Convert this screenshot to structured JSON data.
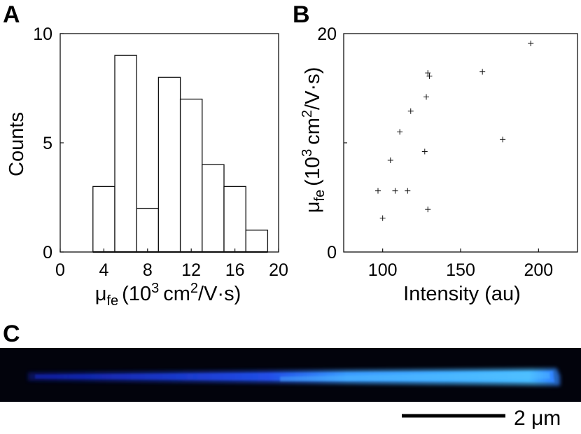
{
  "panels": {
    "a": {
      "letter": "A"
    },
    "b": {
      "letter": "B"
    },
    "c": {
      "letter": "C"
    }
  },
  "chart_data": [
    {
      "panel": "A",
      "type": "bar",
      "subtype": "histogram",
      "bin_edges": [
        3,
        5,
        7,
        9,
        11,
        13,
        15,
        17,
        19
      ],
      "values": [
        3,
        9,
        2,
        8,
        7,
        4,
        3,
        1
      ],
      "xlim": [
        0,
        20
      ],
      "ylim": [
        0,
        10
      ],
      "x_ticks": [
        "0",
        "4",
        "8",
        "12",
        "16",
        "20"
      ],
      "y_ticks": [
        "0",
        "5",
        "10"
      ],
      "ylabel": "Counts",
      "xlabel": {
        "symbol": "μ",
        "subscript": "fe",
        "prefix": "(10",
        "exp": "3",
        "mid": "cm",
        "exp2": "2",
        "suffix": "/V·s)"
      }
    },
    {
      "panel": "B",
      "type": "scatter",
      "marker": "+",
      "x": [
        97,
        100,
        105,
        108,
        111,
        116,
        118,
        127,
        128,
        129,
        129,
        130,
        164,
        177,
        195
      ],
      "y": [
        5.6,
        3.1,
        8.4,
        5.6,
        11.0,
        5.6,
        12.9,
        9.2,
        14.2,
        3.9,
        16.4,
        16.1,
        16.5,
        10.3,
        19.1
      ],
      "xlim": [
        75,
        225
      ],
      "ylim": [
        0,
        20
      ],
      "x_ticks": [
        "100",
        "150",
        "200"
      ],
      "y_ticks": [
        "0",
        "20"
      ],
      "xlabel": "Intensity (au)",
      "ylabel": {
        "symbol": "μ",
        "subscript": "fe",
        "prefix": "(10",
        "exp": "3",
        "mid": "cm",
        "exp2": "2",
        "suffix": "/V·s)"
      }
    }
  ],
  "image_c": {
    "scale_bar_label": "2 μm",
    "colors": {
      "background": "#000000",
      "wire_core": "#46b4ff",
      "wire_dim": "#1a2fd6"
    }
  }
}
